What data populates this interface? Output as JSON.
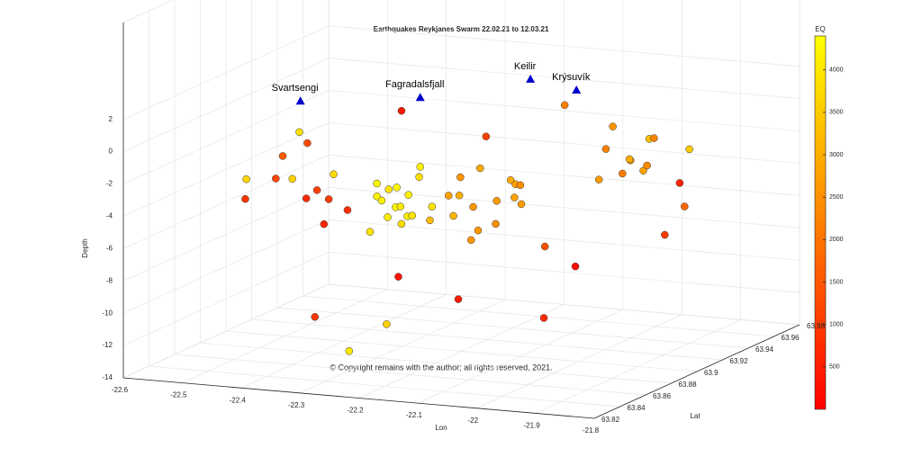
{
  "chart_data": {
    "type": "scatter3d",
    "title": "Earthquakes Reykjanes Swarm 22.02.21 to 12.03.21",
    "xlabel": "Lon",
    "ylabel": "Lat",
    "zlabel": "Depth",
    "colorbar_label": "EQ",
    "annotation": "© Copyright remains with the author; all rights reserved, 2021.",
    "xlim": [
      -22.6,
      -21.8
    ],
    "xticks": [
      -22.6,
      -22.5,
      -22.4,
      -22.3,
      -22.2,
      -22.1,
      -22,
      -21.9,
      -21.8
    ],
    "ylim": [
      63.82,
      63.98
    ],
    "yticks": [
      63.82,
      63.84,
      63.86,
      63.88,
      63.9,
      63.92,
      63.94,
      63.96,
      63.98
    ],
    "zlim": [
      -14,
      8
    ],
    "zticks": [
      -14,
      -12,
      -10,
      -8,
      -6,
      -4,
      -2,
      0,
      2
    ],
    "clim": [
      0,
      4400
    ],
    "cticks": [
      500,
      1000,
      1500,
      2000,
      2500,
      3000,
      3500,
      4000
    ],
    "colormap": "autumn",
    "grid": true,
    "stations": {
      "names": [
        "Svartsengi",
        "Fagradalsfjall",
        "Keilir",
        "Krýsuvík"
      ],
      "lon": [
        -22.43,
        -22.27,
        -22.17,
        -22.07
      ],
      "lat": [
        63.88,
        63.9,
        63.94,
        63.93
      ],
      "depth": [
        1.5,
        1.5,
        1.5,
        1.5
      ],
      "color": "#0000cc"
    },
    "points": {
      "lon": [
        -22.3,
        -22.29,
        -22.28,
        -22.27,
        -22.26,
        -22.25,
        -22.31,
        -22.29,
        -22.27,
        -22.26,
        -22.28,
        -22.3,
        -22.25,
        -22.27,
        -22.29,
        -22.24,
        -22.2,
        -22.18,
        -22.16,
        -22.14,
        -22.12,
        -22.19,
        -22.17,
        -22.15,
        -22.13,
        -22.11,
        -22.21,
        -22.18,
        -22.16,
        -22.14,
        -22.1,
        -22.12,
        -22.02,
        -22.0,
        -21.98,
        -21.96,
        -22.01,
        -21.99,
        -21.97,
        -22.03,
        -21.95,
        -22.0,
        -22.48,
        -22.45,
        -22.42,
        -22.4,
        -22.38,
        -22.35,
        -22.33,
        -22.44,
        -22.39,
        -22.36,
        -22.5,
        -22.46,
        -22.22,
        -22.08,
        -22.05,
        -21.93,
        -21.9,
        -22.34,
        -22.24,
        -22.14,
        -22.06,
        -21.92,
        -22.41,
        -22.28,
        -22.18,
        -22.09,
        -21.96,
        -22.26
      ],
      "lat": [
        63.88,
        63.89,
        63.88,
        63.89,
        63.88,
        63.89,
        63.9,
        63.87,
        63.9,
        63.87,
        63.89,
        63.88,
        63.9,
        63.87,
        63.9,
        63.88,
        63.89,
        63.9,
        63.88,
        63.9,
        63.89,
        63.91,
        63.88,
        63.89,
        63.91,
        63.9,
        63.88,
        63.89,
        63.92,
        63.88,
        63.9,
        63.91,
        63.93,
        63.94,
        63.93,
        63.94,
        63.92,
        63.95,
        63.92,
        63.94,
        63.93,
        63.95,
        63.86,
        63.87,
        63.88,
        63.86,
        63.87,
        63.88,
        63.86,
        63.89,
        63.88,
        63.87,
        63.87,
        63.88,
        63.86,
        63.91,
        63.92,
        63.95,
        63.94,
        63.85,
        63.86,
        63.87,
        63.9,
        63.93,
        63.87,
        63.89,
        63.91,
        63.93,
        63.96,
        63.84
      ],
      "depth": [
        -4,
        -5,
        -3.5,
        -5.5,
        -4.5,
        -3,
        -4.2,
        -5.8,
        -2.8,
        -4.8,
        -6,
        -3.2,
        -5.2,
        -3.8,
        -4.6,
        -5,
        -4,
        -5,
        -3.5,
        -4.5,
        -5.5,
        -3,
        -4.8,
        -6,
        -3.8,
        -4.2,
        -5.2,
        -2.8,
        -4,
        -6.2,
        -3.4,
        -5,
        -2,
        -3,
        -2.5,
        -1.5,
        -3.5,
        -2,
        -3,
        -1,
        -2.8,
        -4,
        -4,
        -3,
        -4.5,
        -2.5,
        -3.5,
        -5,
        -2,
        -1.5,
        -6,
        -4,
        -3.2,
        -2,
        -8,
        -7.5,
        -9,
        -6,
        -2,
        -10.5,
        -11,
        -9.5,
        -11.5,
        -7,
        0,
        1,
        -1,
        0.5,
        -5,
        -12
      ],
      "eq": [
        4200,
        4300,
        3900,
        4100,
        4000,
        3850,
        4250,
        3950,
        4150,
        4050,
        3800,
        4300,
        3900,
        4200,
        4100,
        3950,
        2800,
        2600,
        3000,
        2700,
        2500,
        2900,
        3100,
        2650,
        2750,
        2850,
        3200,
        2550,
        2950,
        2600,
        2400,
        2700,
        2200,
        2500,
        3000,
        2300,
        2700,
        3300,
        2100,
        2600,
        2400,
        2800,
        900,
        1200,
        700,
        3600,
        1100,
        800,
        3800,
        1300,
        600,
        1000,
        3700,
        1500,
        300,
        1400,
        200,
        1800,
        3500,
        900,
        3600,
        400,
        700,
        1000,
        3900,
        400,
        1100,
        2200,
        600,
        4000
      ]
    }
  }
}
